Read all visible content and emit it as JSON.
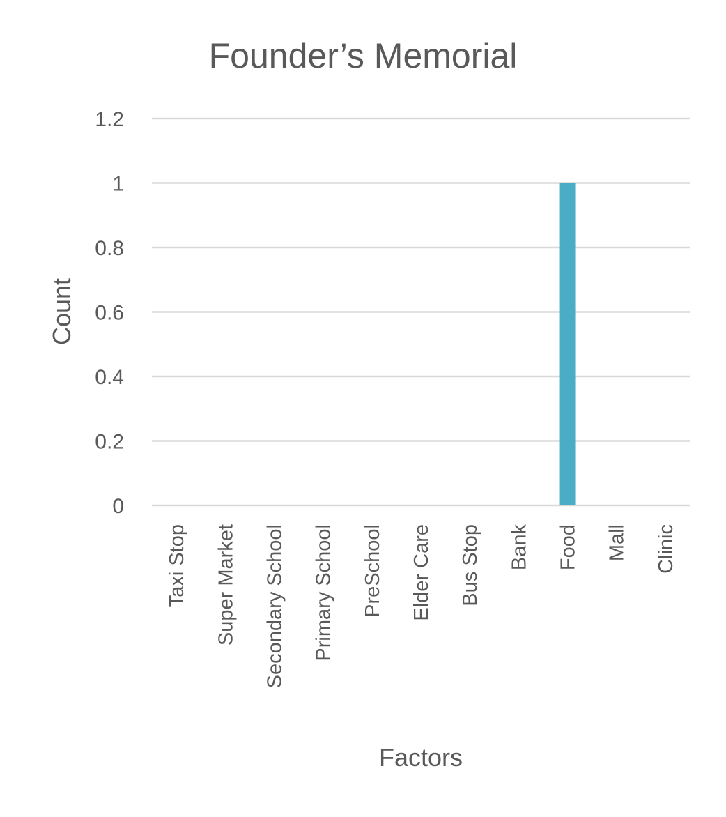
{
  "chart_data": {
    "type": "bar",
    "title": "Founder’s Memorial",
    "xlabel": "Factors",
    "ylabel": "Count",
    "ylim": [
      0,
      1.2
    ],
    "yticks": [
      "0",
      "0.2",
      "0.4",
      "0.6",
      "0.8",
      "1",
      "1.2"
    ],
    "grid": true,
    "categories": [
      "Taxi Stop",
      "Super Market",
      "Secondary School",
      "Primary School",
      "PreSchool",
      "Elder Care",
      "Bus Stop",
      "Bank",
      "Food",
      "Mall",
      "Clinic"
    ],
    "series": [
      {
        "values": [
          0,
          0,
          0,
          0,
          0,
          0,
          0,
          0,
          1,
          0,
          0
        ],
        "color": "#4bacc6"
      }
    ]
  }
}
